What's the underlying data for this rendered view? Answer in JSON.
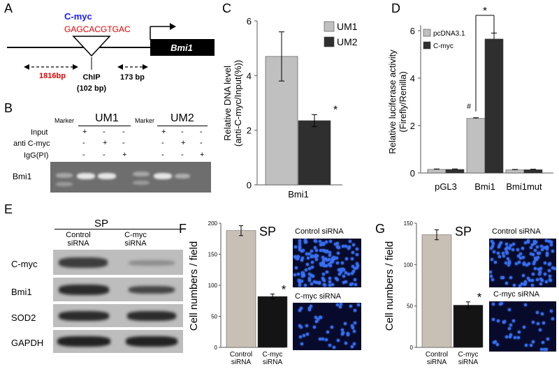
{
  "panels": {
    "A": {
      "letter": "A",
      "gene_label": "C-myc",
      "sequence": "GAGCACGTGAC",
      "box_label": "Bmi1",
      "dist_left": "1816bp",
      "chip_label": "ChIP",
      "chip_size": "(102 bp)",
      "dist_right": "173 bp"
    },
    "B": {
      "letter": "B",
      "marker_label": "Marker",
      "group1": "UM1",
      "group2": "UM2",
      "row_labels": [
        "Input",
        "anti C-myc",
        "IgG(PI)"
      ],
      "signs_group1": [
        [
          "+",
          "-",
          "-"
        ],
        [
          "-",
          "+",
          "-"
        ],
        [
          "-",
          "-",
          "+"
        ]
      ],
      "signs_group2": [
        [
          "+",
          "-",
          "-"
        ],
        [
          "-",
          "+",
          "-"
        ],
        [
          "-",
          "-",
          "+"
        ]
      ],
      "gel_label": "Bmi1"
    },
    "C": {
      "letter": "C",
      "significance": "*",
      "chart_data": {
        "type": "bar",
        "categories": [
          "Bmi1"
        ],
        "series": [
          {
            "name": "UM1",
            "values": [
              4.7
            ],
            "error": [
              0.9
            ],
            "color": "#c0c0c0"
          },
          {
            "name": "UM2",
            "values": [
              2.35
            ],
            "error": [
              0.22
            ],
            "color": "#2f2f2f"
          }
        ],
        "ylabel": "Relative DNA level (anti-C-myc/Input(%))",
        "ylabel_lines": [
          "Relative DNA level",
          "(anti-C-myc/Input(%))"
        ],
        "ylim": [
          0,
          6
        ],
        "yticks": [
          "0",
          "2",
          "4",
          "6"
        ],
        "legend": "top-right"
      }
    },
    "D": {
      "letter": "D",
      "hash_mark": "#",
      "significance": "*",
      "chart_data": {
        "type": "bar",
        "categories": [
          "pGL3",
          "Bmi1",
          "Bmi1mut"
        ],
        "series": [
          {
            "name": "pcDNA3.1",
            "values": [
              0.15,
              2.3,
              0.13
            ],
            "error": [
              0.02,
              0.03,
              0.02
            ],
            "color": "#c0c0c0"
          },
          {
            "name": "C-myc",
            "values": [
              0.15,
              5.65,
              0.14
            ],
            "error": [
              0.02,
              0.25,
              0.02
            ],
            "color": "#2f2f2f"
          }
        ],
        "ylabel": "Relative luciferase activity (Firefly/Renilla)",
        "ylabel_lines": [
          "Relative luciferase activity",
          "(Firefly/Renilla)"
        ],
        "ylim": [
          0,
          6
        ],
        "yticks": [
          "0",
          "2",
          "4",
          "6"
        ],
        "legend": "top-left"
      }
    },
    "E": {
      "letter": "E",
      "group": "SP",
      "lane1": [
        "Control",
        "siRNA"
      ],
      "lane2": [
        "C-myc",
        "siRNA"
      ],
      "rows": [
        "C-myc",
        "Bmi1",
        "SOD2",
        "GAPDH"
      ]
    },
    "F": {
      "letter": "F",
      "group": "SP",
      "significance": "*",
      "image_label_top": "Control siRNA",
      "image_label_bottom": "C-myc siRNA",
      "chart_data": {
        "type": "bar",
        "categories": [
          "Control siRNA",
          "C-myc siRNA"
        ],
        "category_lines": [
          [
            "Control",
            "siRNA"
          ],
          [
            "C-myc",
            "siRNA"
          ]
        ],
        "values": [
          188,
          82
        ],
        "errors": [
          8,
          4
        ],
        "colors": [
          "#c9c0b5",
          "#141414"
        ],
        "ylabel": "Cell numbers / field",
        "ylim": [
          0,
          200
        ],
        "yticks": [
          "0",
          "50",
          "100",
          "150",
          "200"
        ]
      }
    },
    "G": {
      "letter": "G",
      "group": "SP",
      "significance": "*",
      "image_label_top": "Control siRNA",
      "image_label_bottom": "C-myc siRNA",
      "chart_data": {
        "type": "bar",
        "categories": [
          "Control siRNA",
          "C-myc siRNA"
        ],
        "category_lines": [
          [
            "Control",
            "siRNA"
          ],
          [
            "C-myc",
            "siRNA"
          ]
        ],
        "values": [
          136,
          51
        ],
        "errors": [
          6,
          4
        ],
        "colors": [
          "#c9c0b5",
          "#141414"
        ],
        "ylabel": "Cell numbers / field",
        "ylim": [
          0,
          150
        ],
        "yticks": [
          "0",
          "50",
          "100",
          "150"
        ]
      }
    }
  }
}
